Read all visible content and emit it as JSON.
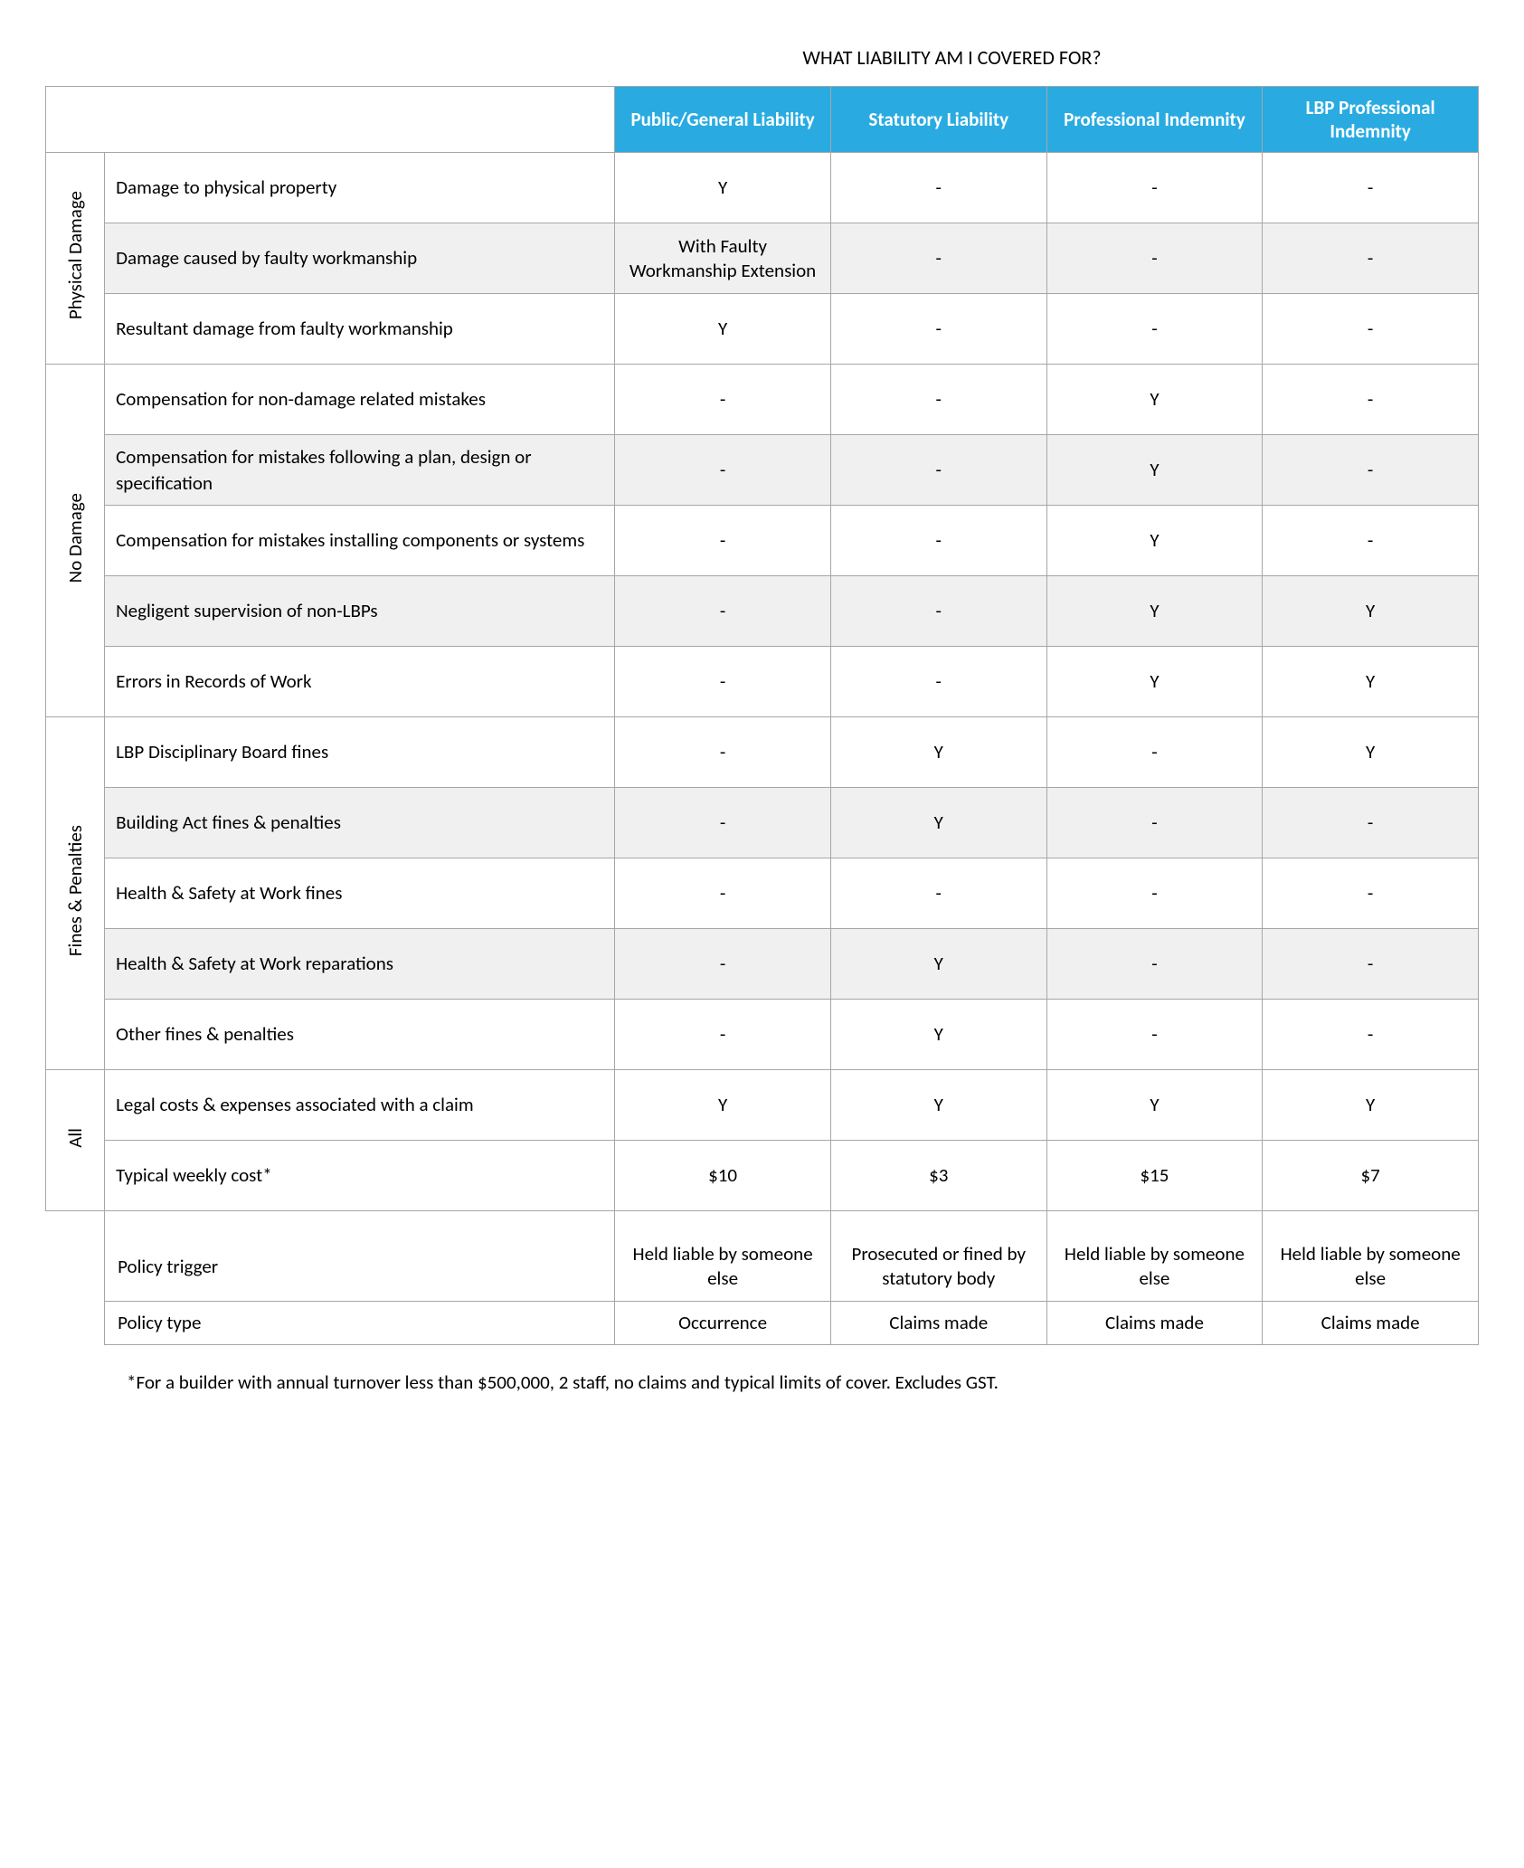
{
  "title": "WHAT LIABILITY AM I COVERED FOR?",
  "colors": {
    "header_bg": "#29abe2",
    "header_text": "#ffffff",
    "border": "#a6a6a6",
    "shaded_row": "#f0f0f0",
    "background": "#ffffff",
    "text": "#000000"
  },
  "columns": [
    "Public/General Liability",
    "Statutory Liability",
    "Professional Indemnity",
    "LBP Professional Indemnity"
  ],
  "groups": [
    {
      "label": "Physical Damage",
      "rows": [
        {
          "label": "Damage to physical property",
          "vals": [
            "Y",
            "-",
            "-",
            "-"
          ]
        },
        {
          "label": "Damage caused by faulty workmanship",
          "vals": [
            "With Faulty Workmanship Extension",
            "-",
            "-",
            "-"
          ]
        },
        {
          "label": "Resultant damage from faulty workmanship",
          "vals": [
            "Y",
            "-",
            "-",
            "-"
          ]
        }
      ]
    },
    {
      "label": "No Damage",
      "rows": [
        {
          "label": "Compensation for non-damage related mistakes",
          "vals": [
            "-",
            "-",
            "Y",
            "-"
          ]
        },
        {
          "label": "Compensation for mistakes following a plan, design or specification",
          "vals": [
            "-",
            "-",
            "Y",
            "-"
          ]
        },
        {
          "label": "Compensation for mistakes installing components or systems",
          "vals": [
            "-",
            "-",
            "Y",
            "-"
          ]
        },
        {
          "label": "Negligent supervision of non-LBPs",
          "vals": [
            "-",
            "-",
            "Y",
            "Y"
          ]
        },
        {
          "label": "Errors in Records of Work",
          "vals": [
            "-",
            "-",
            "Y",
            "Y"
          ]
        }
      ]
    },
    {
      "label": "Fines & Penalties",
      "rows": [
        {
          "label": "LBP Disciplinary Board fines",
          "vals": [
            "-",
            "Y",
            "-",
            "Y"
          ]
        },
        {
          "label": "Building Act fines & penalties",
          "vals": [
            "-",
            "Y",
            "-",
            "-"
          ]
        },
        {
          "label": "Health & Safety at Work fines",
          "vals": [
            "-",
            "-",
            "-",
            "-"
          ]
        },
        {
          "label": "Health & Safety at Work reparations",
          "vals": [
            "-",
            "Y",
            "-",
            "-"
          ]
        },
        {
          "label": "Other fines & penalties",
          "vals": [
            "-",
            "Y",
            "-",
            "-"
          ]
        }
      ]
    },
    {
      "label": "All",
      "rows": [
        {
          "label": "Legal costs & expenses associated with a claim",
          "vals": [
            "Y",
            "Y",
            "Y",
            "Y"
          ]
        },
        {
          "label": "Typical weekly cost*",
          "vals": [
            "$10",
            "$3",
            "$15",
            "$7"
          ]
        }
      ]
    }
  ],
  "footer_rows": [
    {
      "label": "Policy trigger",
      "vals": [
        "Held liable by someone else",
        "Prosecuted or fined by statutory body",
        "Held liable by someone else",
        "Held liable by someone else"
      ]
    },
    {
      "label": "Policy type",
      "vals": [
        "Occurrence",
        "Claims made",
        "Claims made",
        "Claims made"
      ]
    }
  ],
  "footnote": "*For a builder with annual turnover less than $500,000, 2 staff, no claims and typical limits of cover. Excludes GST."
}
